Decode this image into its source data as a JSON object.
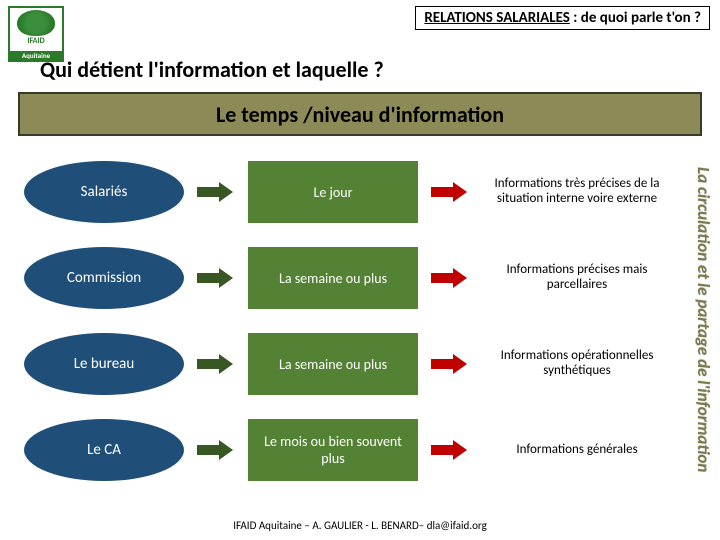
{
  "header": {
    "title_prefix": "RELATIONS SALARIALES",
    "title_suffix": " : de quoi parle t'on ?"
  },
  "logo": {
    "line1": "IFAID",
    "line2": "Aquitaine"
  },
  "question": "Qui détient l'information et laquelle ?",
  "banner": {
    "text": "Le temps /niveau d'information",
    "bg": "#8c8b57",
    "border": "#3a3a2a"
  },
  "side_label": {
    "text": "La circulation et le partage de l'information",
    "color": "#7d7a4a"
  },
  "colors": {
    "ellipse_fill": "#1f4e79",
    "rect_fill": "#548235",
    "arrow_dark": "#385723",
    "arrow_red": "#c00000"
  },
  "rows": [
    {
      "actor": "Salariés",
      "time": "Le jour",
      "info": "Informations très précises de la situation interne voire externe"
    },
    {
      "actor": "Commission",
      "time": "La semaine ou plus",
      "info": "Informations précises mais parcellaires"
    },
    {
      "actor": "Le bureau",
      "time": "La semaine ou plus",
      "info": "Informations opérationnelles synthétiques"
    },
    {
      "actor": "Le CA",
      "time": "Le mois ou bien souvent plus",
      "info": "Informations générales"
    }
  ],
  "footer": "IFAID Aquitaine – A. GAULIER - L. BENARD– dla@ifaid.org"
}
